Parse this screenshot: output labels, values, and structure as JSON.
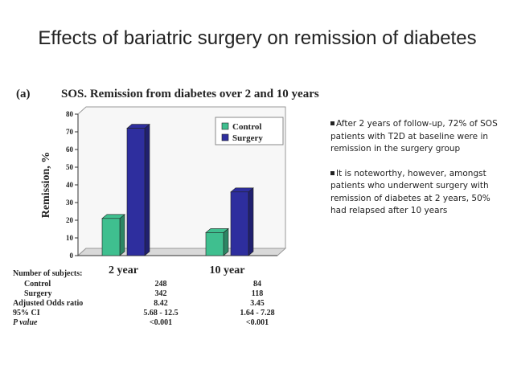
{
  "slide": {
    "title": "Effects of bariatric surgery on remission of diabetes"
  },
  "figure": {
    "panel_label": "(a)",
    "table": {
      "header_label": "Number of subjects:",
      "rows": [
        {
          "label": "Control",
          "values": [
            "248",
            "84"
          ]
        },
        {
          "label": "Surgery",
          "values": [
            "342",
            "118"
          ]
        },
        {
          "label": "Adjusted Odds ratio",
          "values": [
            "8.42",
            "3.45"
          ]
        },
        {
          "label": "95% CI",
          "values": [
            "5.68 - 12.5",
            "1.64 - 7.28"
          ]
        },
        {
          "label": "P value",
          "values": [
            "<0.001",
            "<0.001"
          ]
        }
      ]
    }
  },
  "chart_data": {
    "type": "bar",
    "title": "SOS. Remission from diabetes over 2 and 10 years",
    "ylabel": "Remission, %",
    "xlabel": "",
    "categories": [
      "2 year",
      "10 year"
    ],
    "series": [
      {
        "name": "Control",
        "values": [
          21,
          13
        ],
        "color": "#3fbf8f"
      },
      {
        "name": "Surgery",
        "values": [
          72,
          36
        ],
        "color": "#2e2e9e"
      }
    ],
    "ylim": [
      0,
      80
    ],
    "yticks": [
      "0",
      "10",
      "20",
      "30",
      "40",
      "50",
      "60",
      "70",
      "80"
    ],
    "grid": false,
    "legend": "top-right"
  },
  "bullets": [
    "After 2 years of follow-up, 72% of SOS patients with T2D at baseline were in remission in the surgery group",
    "It is noteworthy, however, amongst patients who underwent surgery with remission of diabetes at 2 years, 50% had relapsed after 10 years"
  ]
}
